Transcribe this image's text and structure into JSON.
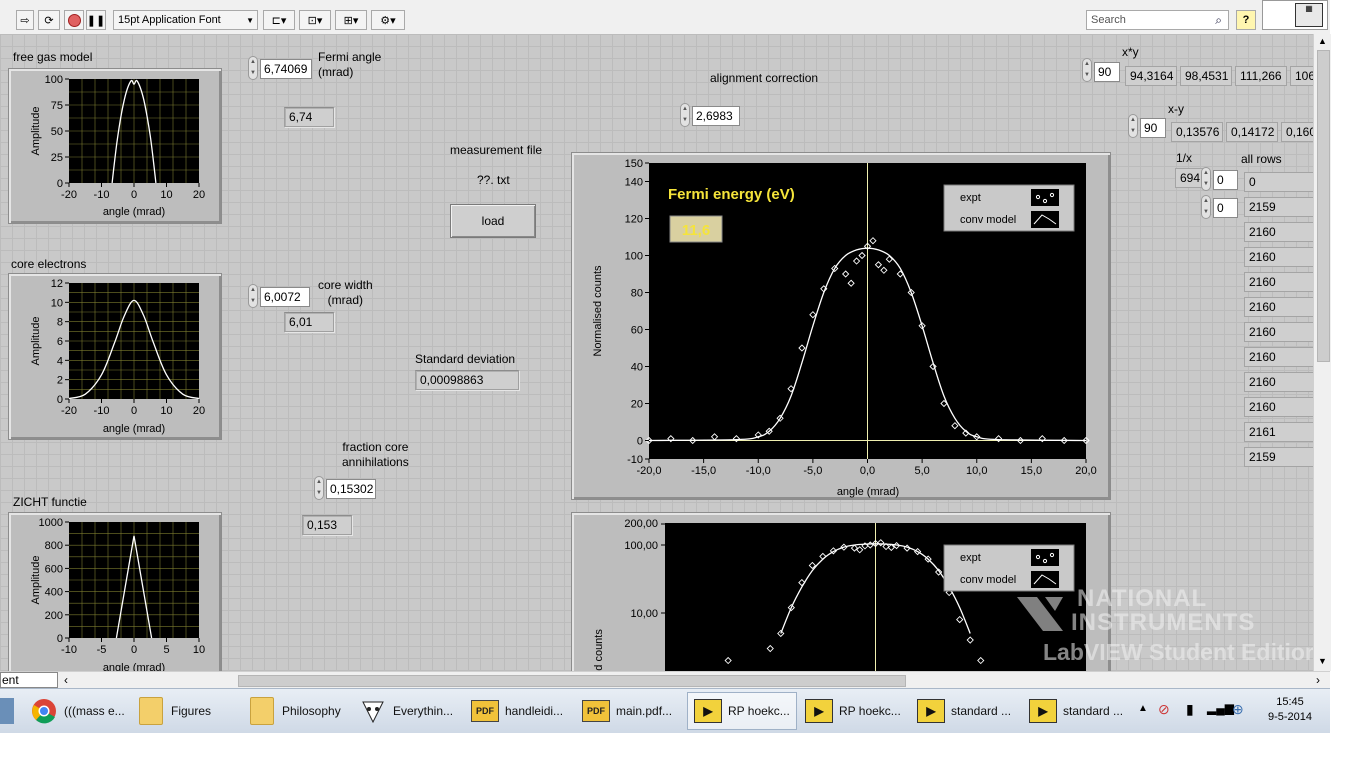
{
  "toolbar": {
    "font_select": "15pt Application Font",
    "search_placeholder": "Search",
    "help_label": "?"
  },
  "panel": {
    "free_gas_title": "free gas model",
    "core_title": "core electrons",
    "zicht_title": "ZICHT  functie",
    "fermi_angle_label": "Fermi angle\n(mrad)",
    "fermi_angle_value": "6,74069",
    "fermi_angle_ind": "6,74",
    "core_width_label": "core width\n(mrad)",
    "core_width_value": "6,0072",
    "core_width_ind": "6,01",
    "fraction_label": "fraction core\nannihilations",
    "fraction_value": "0,15302",
    "fraction_ind": "0,153",
    "measurement_label": "measurement file",
    "measurement_file": "??. txt",
    "load_label": "load",
    "std_label": "Standard deviation",
    "std_value": "0,00098863",
    "alignment_label": "alignment correction",
    "alignment_value": "2,6983",
    "fermi_energy_label": "Fermi energy (eV)",
    "fermi_energy_value": "11,6",
    "legend_expt": "expt",
    "legend_conv": "conv model",
    "xy_label": "x*y",
    "xy_index": "90",
    "xy_values": [
      "94,3164",
      "98,4531",
      "111,266",
      "106"
    ],
    "xminusy_label": "x-y",
    "xminusy_index": "90",
    "xminusy_values": [
      "0,13576",
      "0,14172",
      "0,160"
    ],
    "inv_x_label": "1/x",
    "inv_x_value": "694,",
    "inv_idx1": "0",
    "inv_idx2": "0",
    "all_rows_label": "all rows",
    "all_rows": [
      "0",
      "2159",
      "2160",
      "2160",
      "2160",
      "2160",
      "2160",
      "2160",
      "2160",
      "2160",
      "2161",
      "2159"
    ]
  },
  "chart_data": [
    {
      "type": "line",
      "title": "free gas model",
      "xlabel": "angle (mrad)",
      "ylabel": "Amplitude",
      "x_ticks": [
        "-20",
        "-10",
        "0",
        "10",
        "20"
      ],
      "y_ticks": [
        "0",
        "25",
        "50",
        "75",
        "100"
      ],
      "xlim": [
        -20,
        20
      ],
      "ylim": [
        0,
        100
      ],
      "series": [
        {
          "x": [
            -6.74,
            -5,
            -3,
            -1,
            0,
            1,
            3,
            5,
            6.74
          ],
          "y": [
            0,
            45,
            80,
            98,
            95,
            98,
            80,
            45,
            0
          ]
        }
      ]
    },
    {
      "type": "line",
      "title": "core electrons",
      "xlabel": "angle (mrad)",
      "ylabel": "Amplitude",
      "x_ticks": [
        "-20",
        "-10",
        "0",
        "10",
        "20"
      ],
      "y_ticks": [
        "0",
        "2",
        "4",
        "6",
        "8",
        "10",
        "12"
      ],
      "xlim": [
        -20,
        20
      ],
      "ylim": [
        0,
        12
      ],
      "series": [
        {
          "x": [
            -20,
            -15,
            -10,
            -6,
            -3,
            0,
            3,
            6,
            10,
            15,
            20
          ],
          "y": [
            0.05,
            0.5,
            2.5,
            5.8,
            8.6,
            10.2,
            8.6,
            5.8,
            2.5,
            0.5,
            0.05
          ]
        }
      ]
    },
    {
      "type": "line",
      "title": "ZICHT  functie",
      "xlabel": "angle (mrad)",
      "ylabel": "Amplitude",
      "x_ticks": [
        "-10",
        "-5",
        "0",
        "5",
        "10"
      ],
      "y_ticks": [
        "0",
        "200",
        "400",
        "600",
        "800",
        "1000"
      ],
      "xlim": [
        -10,
        10
      ],
      "ylim": [
        0,
        1000
      ],
      "series": [
        {
          "x": [
            -2.7,
            0,
            2.7
          ],
          "y": [
            0,
            880,
            0
          ]
        }
      ]
    },
    {
      "type": "scatter",
      "xlabel": "angle (mrad)",
      "ylabel": "Normalised counts",
      "x_ticks": [
        "-20,0",
        "-15,0",
        "-10,0",
        "-5,0",
        "0,0",
        "5,0",
        "10,0",
        "15,0",
        "20,0"
      ],
      "y_ticks": [
        "-10",
        "0",
        "20",
        "40",
        "60",
        "80",
        "100",
        "120",
        "140",
        "150"
      ],
      "xlim": [
        -20,
        20
      ],
      "ylim": [
        -10,
        150
      ],
      "series": [
        {
          "name": "expt",
          "x": [
            -20,
            -18,
            -16,
            -14,
            -12,
            -10,
            -9,
            -8,
            -7,
            -6,
            -5,
            -4,
            -3,
            -2,
            -1.5,
            -1,
            -0.5,
            0,
            0.5,
            1,
            1.5,
            2,
            3,
            4,
            5,
            6,
            7,
            8,
            9,
            10,
            12,
            14,
            16,
            18,
            20
          ],
          "y": [
            0,
            1,
            0,
            2,
            1,
            3,
            5,
            12,
            28,
            50,
            68,
            82,
            93,
            90,
            85,
            97,
            100,
            105,
            108,
            95,
            92,
            98,
            90,
            80,
            62,
            40,
            20,
            8,
            4,
            2,
            1,
            0,
            1,
            0,
            0
          ]
        },
        {
          "name": "conv model",
          "x": [
            -20,
            -12,
            -10,
            -9,
            -8,
            -7,
            -6,
            -5,
            -4,
            -3,
            -2,
            -1,
            0,
            1,
            2,
            3,
            4,
            5,
            6,
            7,
            8,
            9,
            10,
            12,
            20
          ],
          "y": [
            0,
            0.5,
            2,
            5,
            12,
            24,
            42,
            62,
            80,
            93,
            100,
            103,
            104,
            103,
            100,
            93,
            80,
            62,
            42,
            24,
            12,
            5,
            2,
            0.5,
            0
          ]
        }
      ]
    },
    {
      "type": "scatter",
      "ylabel": "ed counts",
      "y_ticks": [
        "10,00",
        "100,00",
        "200,00"
      ],
      "y_scale": "log",
      "series": [
        {
          "name": "expt"
        },
        {
          "name": "conv model"
        }
      ]
    }
  ],
  "watermark": {
    "line1": "NATIONAL",
    "line2": "INSTRUMENTS",
    "line3": "LabVIEW Student Edition"
  },
  "status": {
    "edition_tab": "ent Edition"
  },
  "taskbar": {
    "items": [
      {
        "label": "(((mass e...",
        "icon": "chrome-icon"
      },
      {
        "label": "Figures",
        "icon": "folder-icon"
      },
      {
        "label": "Philosophy",
        "icon": "folder-icon"
      },
      {
        "label": "Everythin...",
        "icon": "everything-icon"
      },
      {
        "label": "handleidi...",
        "icon": "pdf-icon"
      },
      {
        "label": "main.pdf...",
        "icon": "pdf-icon"
      },
      {
        "label": "RP hoekc...",
        "icon": "labview-icon"
      },
      {
        "label": "RP hoekc...",
        "icon": "labview-icon"
      },
      {
        "label": "standard ...",
        "icon": "labview-icon"
      },
      {
        "label": "standard ...",
        "icon": "labview-icon"
      }
    ],
    "time": "15:45",
    "date": "9-5-2014"
  }
}
